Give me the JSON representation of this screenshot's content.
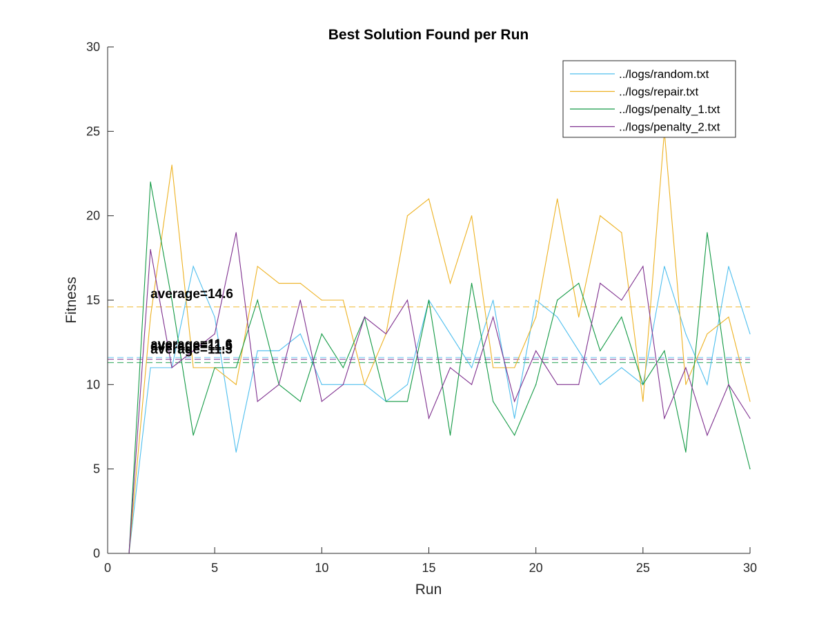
{
  "chart_data": {
    "type": "line",
    "title": "Best Solution Found per Run",
    "xlabel": "Run",
    "ylabel": "Fitness",
    "xlim": [
      0,
      30
    ],
    "ylim": [
      0,
      30
    ],
    "xticks": [
      "0",
      "5",
      "10",
      "15",
      "20",
      "25",
      "30"
    ],
    "yticks": [
      "0",
      "5",
      "10",
      "15",
      "20",
      "25",
      "30"
    ],
    "grid": false,
    "legend_position": "top-right",
    "x": [
      1,
      2,
      3,
      4,
      5,
      6,
      7,
      8,
      9,
      10,
      11,
      12,
      13,
      14,
      15,
      16,
      17,
      18,
      19,
      20,
      21,
      22,
      23,
      24,
      25,
      26,
      27,
      28,
      29,
      30
    ],
    "series": [
      {
        "name": "../logs/random.txt",
        "color": "#4DBEEE",
        "values": [
          0,
          11,
          11,
          17,
          14,
          6,
          12,
          12,
          13,
          10,
          10,
          10,
          9,
          10,
          15,
          13,
          11,
          15,
          8,
          15,
          14,
          12,
          10,
          11,
          10,
          17,
          13,
          10,
          17,
          13
        ],
        "average": 11.6
      },
      {
        "name": "../logs/repair.txt",
        "color": "#EDB120",
        "values": [
          0,
          14,
          23,
          11,
          11,
          10,
          17,
          16,
          16,
          15,
          15,
          10,
          13,
          20,
          21,
          16,
          20,
          11,
          11,
          14,
          21,
          14,
          20,
          19,
          9,
          25,
          10,
          13,
          14,
          9
        ],
        "average": 14.6
      },
      {
        "name": "../logs/penalty_1.txt",
        "color": "#119943",
        "values": [
          0,
          22,
          15,
          7,
          11,
          11,
          15,
          10,
          9,
          13,
          11,
          14,
          9,
          9,
          15,
          7,
          16,
          9,
          7,
          10,
          15,
          16,
          12,
          14,
          10,
          12,
          6,
          19,
          10,
          5
        ],
        "average": 11.3
      },
      {
        "name": "../logs/penalty_2.txt",
        "color": "#7E2F8E",
        "values": [
          0,
          18,
          11,
          12,
          13,
          19,
          9,
          10,
          15,
          9,
          10,
          14,
          13,
          15,
          8,
          11,
          10,
          14,
          9,
          12,
          10,
          10,
          16,
          15,
          17,
          8,
          11,
          7,
          10,
          8
        ],
        "average": 11.5
      }
    ],
    "annotations": [
      {
        "text": "average=14.6",
        "x": 2,
        "y": 14.6
      },
      {
        "text": "average=11.6",
        "x": 2,
        "y": 11.6
      },
      {
        "text": "average=11.5",
        "x": 2,
        "y": 11.5
      },
      {
        "text": "average=11.3",
        "x": 2,
        "y": 11.3
      }
    ]
  }
}
